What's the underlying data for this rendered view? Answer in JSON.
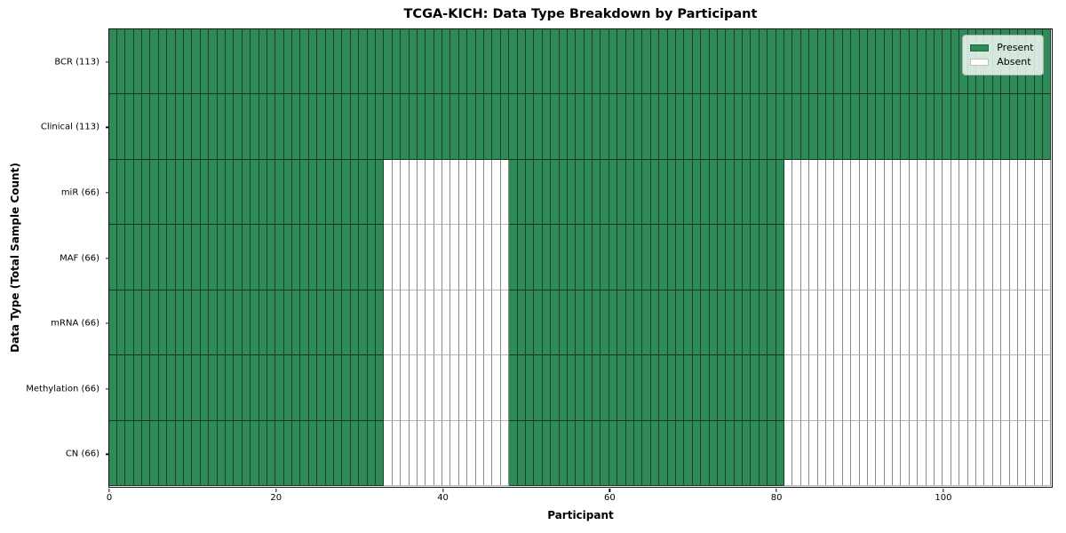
{
  "chart_data": {
    "type": "heatmap",
    "title": "TCGA-KICH: Data Type Breakdown by Participant",
    "xlabel": "Participant",
    "ylabel": "Data Type (Total Sample Count)",
    "n_participants": 113,
    "xlim": [
      0,
      113
    ],
    "x_ticks": [
      0,
      20,
      40,
      60,
      80,
      100
    ],
    "grid": "cell-borders",
    "legend_position": "upper-right",
    "legend": [
      {
        "label": "Present",
        "color": "#2e8b57"
      },
      {
        "label": "Absent",
        "color": "#ffffff"
      }
    ],
    "colors": {
      "present": "#2e8b57",
      "absent": "#ffffff",
      "frame": "#111111"
    },
    "rows": [
      {
        "label": "BCR (113)",
        "total": 113,
        "present_ranges": [
          [
            0,
            113
          ]
        ]
      },
      {
        "label": "Clinical (113)",
        "total": 113,
        "present_ranges": [
          [
            0,
            113
          ]
        ]
      },
      {
        "label": "miR (66)",
        "total": 66,
        "present_ranges": [
          [
            0,
            33
          ],
          [
            48,
            81
          ]
        ]
      },
      {
        "label": "MAF (66)",
        "total": 66,
        "present_ranges": [
          [
            0,
            33
          ],
          [
            48,
            81
          ]
        ]
      },
      {
        "label": "mRNA (66)",
        "total": 66,
        "present_ranges": [
          [
            0,
            33
          ],
          [
            48,
            81
          ]
        ]
      },
      {
        "label": "Methylation (66)",
        "total": 66,
        "present_ranges": [
          [
            0,
            33
          ],
          [
            48,
            81
          ]
        ]
      },
      {
        "label": "CN (66)",
        "total": 66,
        "present_ranges": [
          [
            0,
            33
          ],
          [
            48,
            81
          ]
        ]
      }
    ]
  }
}
